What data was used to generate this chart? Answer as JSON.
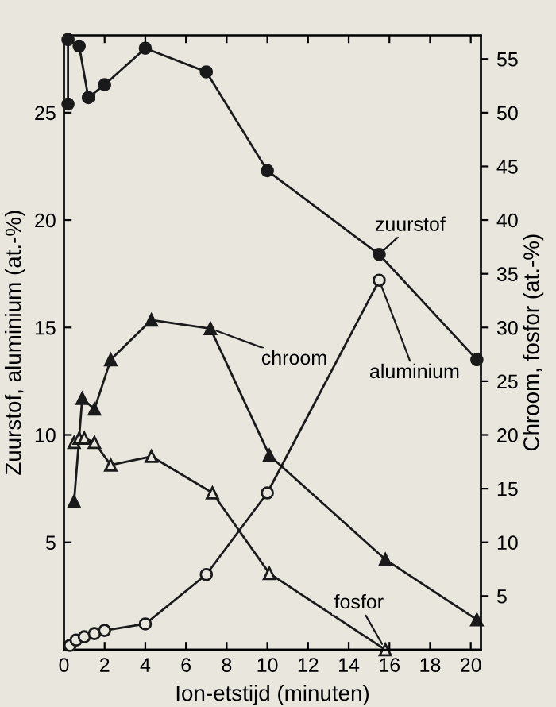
{
  "chart_data": {
    "type": "line",
    "xlabel": "Ion-etstijd (minuten)",
    "ylabel": "Zuurstof, aluminium (at.-%)",
    "y2label": "Chroom, fosfor (at.-%)",
    "xlim": [
      0,
      20.5
    ],
    "xticks": [
      0,
      2,
      4,
      6,
      8,
      10,
      12,
      14,
      16,
      18,
      20
    ],
    "ylim": [
      0,
      28.6
    ],
    "yticks": [
      5,
      10,
      15,
      20,
      25
    ],
    "y2lim": [
      0,
      57.2
    ],
    "y2ticks": [
      5,
      10,
      15,
      20,
      25,
      30,
      35,
      40,
      45,
      50,
      55
    ],
    "grid": false,
    "legend": false,
    "line_style": "solid",
    "series": [
      {
        "name": "zuurstof",
        "color": "#1a1a1a",
        "marker": "circle",
        "x": [
          0.2,
          0.2,
          0.75,
          1.2,
          2,
          4,
          7,
          10,
          15.5,
          20.3
        ],
        "values": [
          25.4,
          28.4,
          28.1,
          25.7,
          26.3,
          28.0,
          26.9,
          22.3,
          18.4,
          13.5
        ]
      },
      {
        "name": "aluminium",
        "color": "#1a1a1a",
        "marker": "circle",
        "x": [
          0.3,
          0.6,
          1,
          1.5,
          2,
          4,
          7,
          10,
          15.5
        ],
        "values": [
          0.2,
          0.45,
          0.6,
          0.75,
          0.9,
          1.2,
          3.5,
          7.3,
          17.2
        ]
      },
      {
        "name": "chroom",
        "color": "#1a1a1a",
        "marker": "triangle",
        "axis": "y2",
        "x": [
          0.5,
          0.9,
          1.5,
          2.3,
          4.3,
          7.2,
          10.1,
          15.8,
          20.3
        ],
        "values": [
          13.8,
          23.4,
          22.4,
          27.0,
          30.7,
          29.9,
          18.1,
          8.4,
          2.8
        ]
      },
      {
        "name": "fosfor",
        "color": "#1a1a1a",
        "marker": "triangle",
        "axis": "y2",
        "x": [
          0.5,
          0.75,
          1,
          1.5,
          2.3,
          4.3,
          7.3,
          10.1,
          15.8
        ],
        "values": [
          19.3,
          19.7,
          19.7,
          19.3,
          17.2,
          18.0,
          14.6,
          7.1,
          0
        ]
      }
    ]
  }
}
